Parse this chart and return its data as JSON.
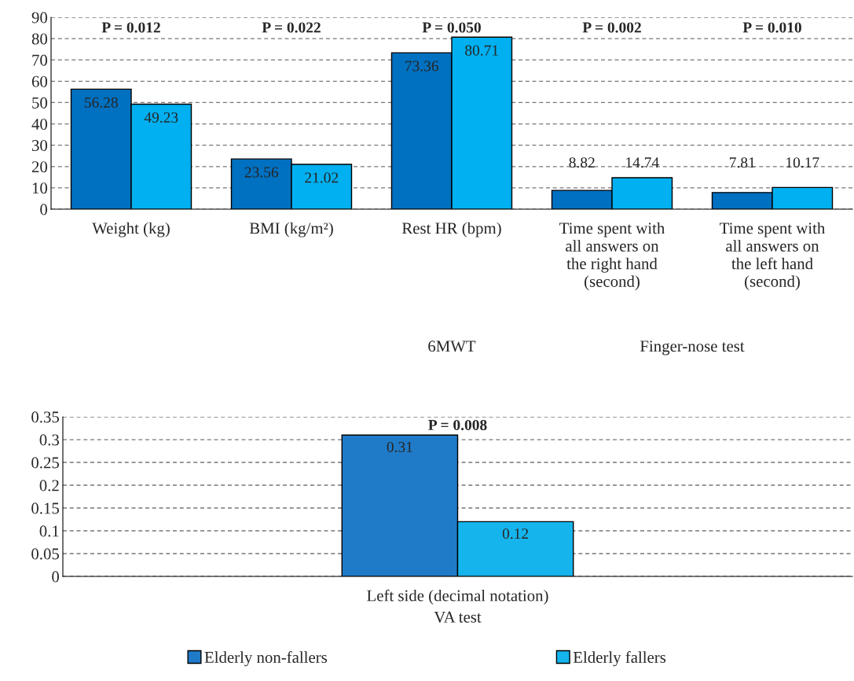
{
  "chart_data": [
    {
      "type": "bar",
      "categories": [
        "Weight (kg)",
        "BMI (kg/m²)",
        "Rest HR (bpm)",
        "Time spent with all answers on the right hand (second)",
        "Time spent with all answers on the left hand (second)"
      ],
      "series": [
        {
          "color": "#0070c0",
          "values": [
            56.28,
            23.56,
            73.36,
            8.82,
            7.81
          ]
        },
        {
          "color": "#00b0f0",
          "values": [
            49.23,
            21.02,
            80.71,
            14.74,
            10.17
          ]
        }
      ],
      "ylim": [
        0,
        90
      ],
      "yticks": [
        0,
        10,
        20,
        30,
        40,
        50,
        60,
        70,
        80,
        90
      ],
      "grid": "y",
      "data_labels": true,
      "annotations": [
        "P = 0.012",
        "P = 0.022",
        "P = 0.050",
        "P = 0.002",
        "P = 0.010",
        "6MWT",
        "Finger-nose test"
      ]
    },
    {
      "type": "bar",
      "categories": [
        "Left side (decimal notation)"
      ],
      "xlabel": "VA test",
      "series": [
        {
          "name": "Elderly non-fallers",
          "color": "#1f7bc8",
          "values": [
            0.31
          ]
        },
        {
          "name": "Elderly fallers",
          "color": "#16b4ec",
          "values": [
            0.12
          ]
        }
      ],
      "ylim": [
        0,
        0.35
      ],
      "yticks": [
        0,
        0.05,
        0.1,
        0.15,
        0.2,
        0.25,
        0.3,
        0.35
      ],
      "grid": "y",
      "data_labels": true,
      "legend": "bottom",
      "annotations": [
        "P = 0.008"
      ]
    }
  ]
}
